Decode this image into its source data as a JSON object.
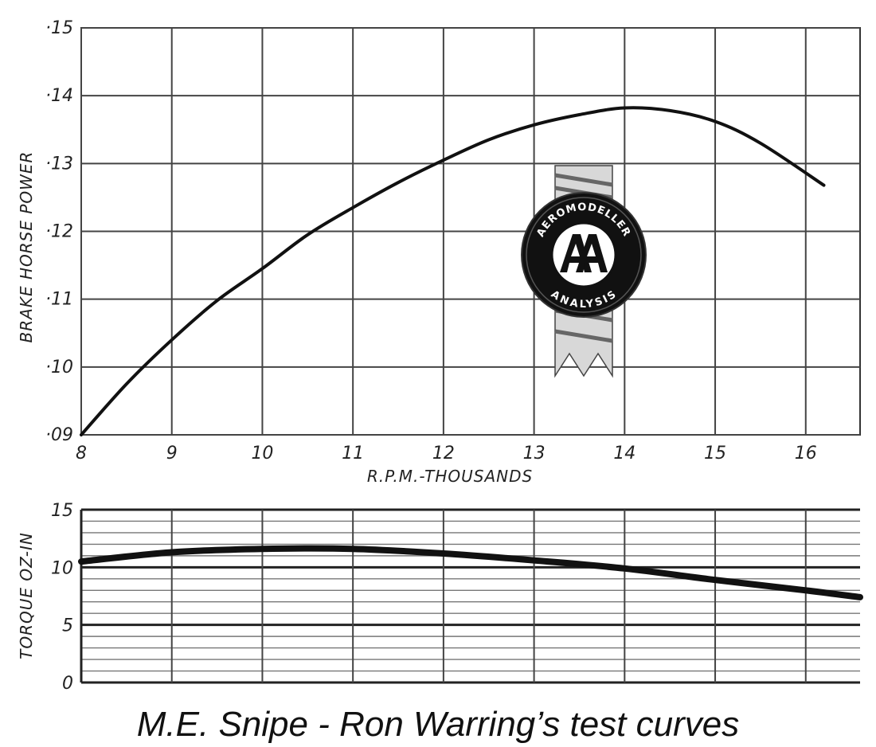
{
  "caption": "M.E. Snipe - Ron Warring’s test curves",
  "chart_data": [
    {
      "type": "line",
      "ylabel": "BRAKE HORSE POWER",
      "xlabel": "R.P.M.-THOUSANDS",
      "xlim": [
        8,
        16.6
      ],
      "ylim": [
        0.09,
        0.15
      ],
      "x_ticks": [
        8,
        9,
        10,
        11,
        12,
        13,
        14,
        15,
        16
      ],
      "x_tick_labels": [
        "8",
        "9",
        "10",
        "11",
        "12",
        "13",
        "14",
        "15",
        "16"
      ],
      "y_ticks": [
        0.09,
        0.1,
        0.11,
        0.12,
        0.13,
        0.14,
        0.15
      ],
      "y_tick_labels": [
        "·09",
        "·10",
        "·11",
        "·12",
        "·13",
        "·14",
        "·15"
      ],
      "grid": true,
      "series": [
        {
          "x": [
            8.0,
            8.5,
            9.0,
            9.5,
            10.0,
            10.5,
            11.0,
            11.5,
            12.0,
            12.5,
            13.0,
            13.5,
            14.0,
            14.5,
            15.0,
            15.5,
            16.2
          ],
          "y": [
            0.09,
            0.0975,
            0.104,
            0.1098,
            0.1145,
            0.1195,
            0.1235,
            0.1272,
            0.1305,
            0.1335,
            0.1357,
            0.1372,
            0.1382,
            0.1378,
            0.1362,
            0.133,
            0.1268
          ]
        }
      ]
    },
    {
      "type": "line",
      "ylabel": "TORQUE OZ-IN",
      "xlim": [
        8,
        16.6
      ],
      "ylim": [
        0,
        15
      ],
      "y_ticks": [
        0,
        5,
        10,
        15
      ],
      "y_tick_labels": [
        "0",
        "5",
        "10",
        "15"
      ],
      "grid": true,
      "series": [
        {
          "x": [
            8.0,
            9.0,
            10.0,
            11.0,
            12.0,
            13.0,
            14.0,
            15.0,
            16.0,
            16.6
          ],
          "y": [
            10.5,
            11.3,
            11.6,
            11.6,
            11.2,
            10.6,
            9.9,
            8.9,
            8.0,
            7.4
          ]
        }
      ]
    }
  ]
}
